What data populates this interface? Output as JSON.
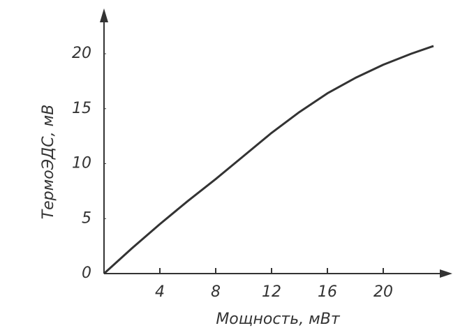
{
  "chart_data": {
    "type": "line",
    "x_label": "Мощность, мВт",
    "y_label": "ТермоЭДС, мВ",
    "x": [
      0,
      2,
      4,
      6,
      8,
      10,
      12,
      14,
      16,
      18,
      20,
      22,
      23.6
    ],
    "series": [
      {
        "color": "#333333",
        "values": [
          0,
          2.3,
          4.5,
          6.6,
          8.6,
          10.7,
          12.8,
          14.7,
          16.4,
          17.8,
          19.0,
          20.0,
          20.7
        ]
      }
    ],
    "xlim": [
      0,
      24.6
    ],
    "ylim": [
      0,
      24.3
    ],
    "xticks": [
      4,
      8,
      12,
      16,
      20
    ],
    "yticks": [
      0,
      5,
      10,
      15,
      20
    ]
  }
}
